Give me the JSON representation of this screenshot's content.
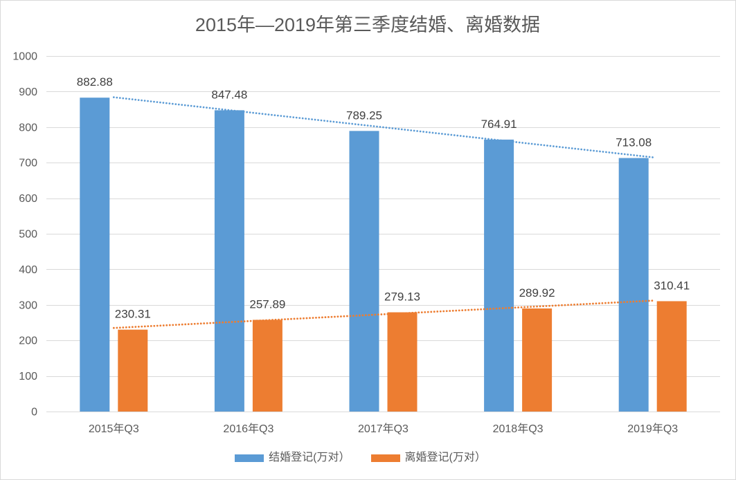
{
  "chart_data": {
    "type": "bar",
    "title": "2015年—2019年第三季度结婚、离婚数据",
    "categories": [
      "2015年Q3",
      "2016年Q3",
      "2017年Q3",
      "2018年Q3",
      "2019年Q3"
    ],
    "series": [
      {
        "name": "结婚登记(万对）",
        "values": [
          882.88,
          847.48,
          789.25,
          764.91,
          713.08
        ],
        "color": "#5B9BD5",
        "trendline": "linear"
      },
      {
        "name": "离婚登记(万对）",
        "values": [
          230.31,
          257.89,
          279.13,
          289.92,
          310.41
        ],
        "color": "#ED7D31",
        "trendline": "linear"
      }
    ],
    "ylim": [
      0,
      1000
    ],
    "yticks": [
      0,
      100,
      200,
      300,
      400,
      500,
      600,
      700,
      800,
      900,
      1000
    ],
    "grid": true,
    "data_labels": true,
    "legend": "bottom"
  }
}
